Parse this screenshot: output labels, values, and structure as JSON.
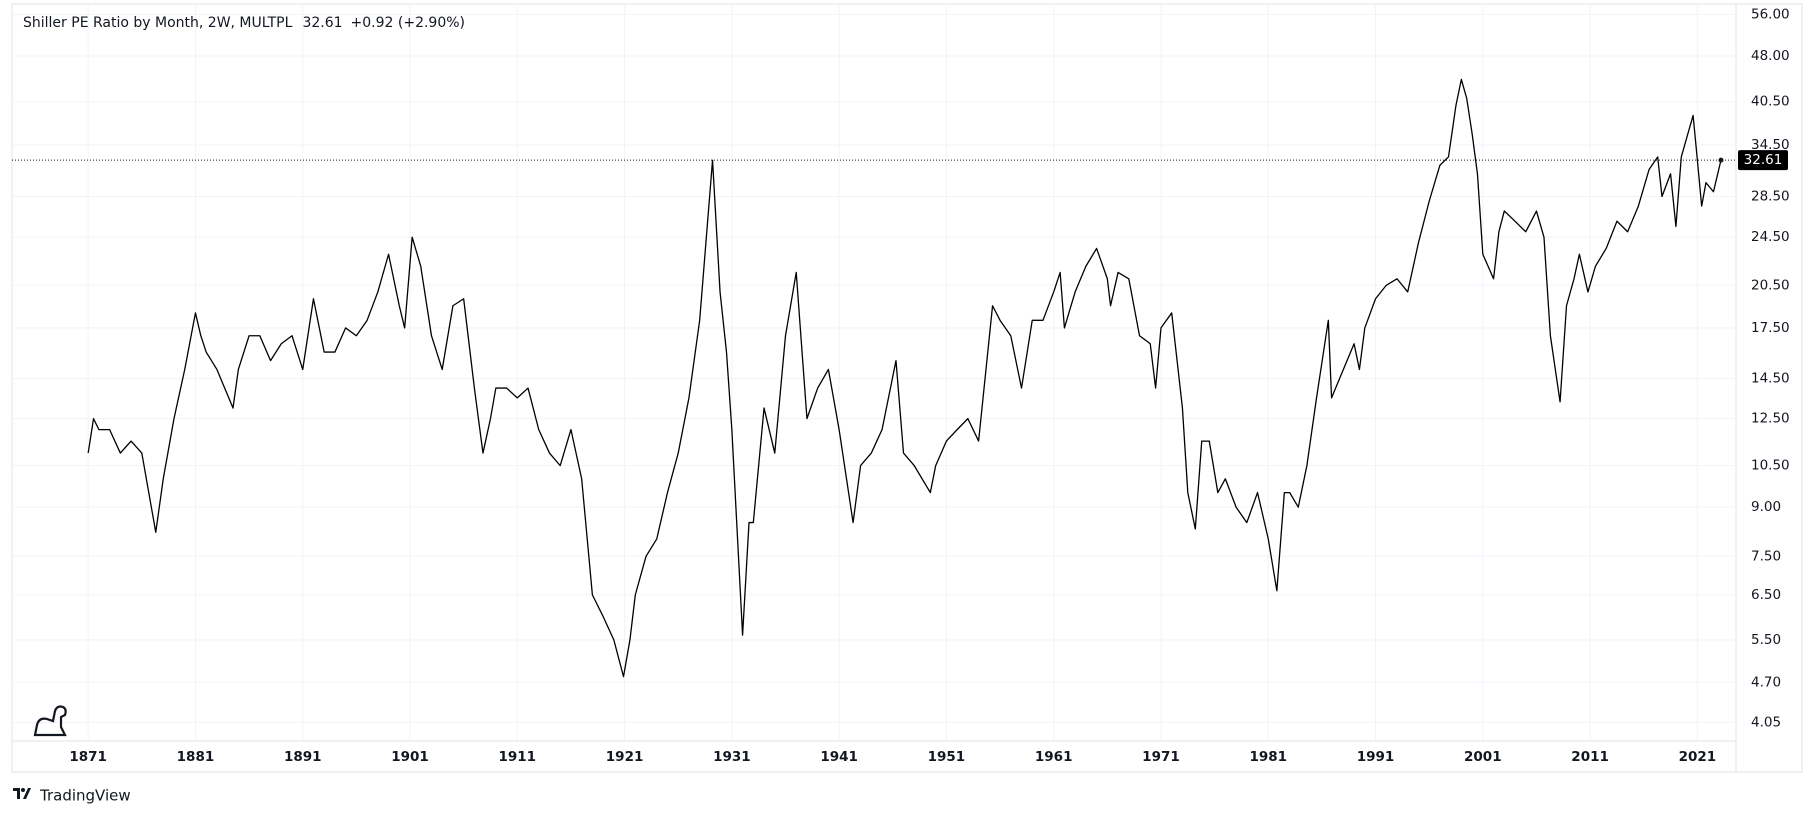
{
  "chart_data": {
    "type": "line",
    "title": "Shiller PE Ratio by Month, 2W, MULTPL",
    "legend_price": "32.61",
    "legend_change": "+0.92 (+2.90%)",
    "branding": "TradingView",
    "log_scale": true,
    "grid": true,
    "color": "#000000",
    "xlim": [
      1863.9,
      2024.6
    ],
    "xticks": [
      1871,
      1881,
      1891,
      1901,
      1911,
      1921,
      1931,
      1941,
      1951,
      1961,
      1971,
      1981,
      1991,
      2001,
      2011,
      2021
    ],
    "ylim": [
      3.78,
      58.2
    ],
    "yticks": [
      4.05,
      {
        "value": 4.7,
        "label": "4.70"
      },
      {
        "value": 5.5,
        "label": "5.50"
      },
      {
        "value": 6.5,
        "label": "6.50"
      },
      {
        "value": 7.5,
        "label": "7.50"
      },
      {
        "value": 9,
        "label": "9.00"
      },
      {
        "value": 10.5,
        "label": "10.50"
      },
      {
        "value": 12.5,
        "label": "12.50"
      },
      {
        "value": 14.5,
        "label": "14.50"
      },
      {
        "value": 17.5,
        "label": "17.50"
      },
      {
        "value": 20.5,
        "label": "20.50"
      },
      {
        "value": 24.5,
        "label": "24.50"
      },
      {
        "value": 28.5,
        "label": "28.50"
      },
      {
        "value": 34.5,
        "label": "34.50"
      },
      {
        "value": 40.5,
        "label": "40.50"
      },
      {
        "value": 48,
        "label": "48.00"
      },
      {
        "value": 56,
        "label": "56.00"
      }
    ],
    "x": [
      1871,
      1871.5,
      1872,
      1873,
      1874,
      1875,
      1876,
      1877.3,
      1878,
      1879,
      1880,
      1881,
      1881.5,
      1882,
      1883,
      1884.5,
      1885,
      1886,
      1887,
      1888,
      1889,
      1890,
      1891,
      1892,
      1893,
      1894,
      1895,
      1896,
      1897,
      1898,
      1899,
      1900,
      1900.5,
      1901.2,
      1902,
      1903,
      1904,
      1905,
      1906,
      1907,
      1907.8,
      1908.5,
      1909,
      1910,
      1911,
      1912,
      1913,
      1914,
      1915,
      1916,
      1917,
      1918,
      1919,
      1920,
      1920.9,
      1921.5,
      1922,
      1923,
      1924,
      1925,
      1926,
      1927,
      1928,
      1929.2,
      1929.9,
      1930.5,
      1931,
      1932,
      1932.6,
      1933,
      1934,
      1935,
      1936,
      1937,
      1938,
      1939,
      1940,
      1941,
      1942.3,
      1943,
      1944,
      1945,
      1946.3,
      1947,
      1948,
      1949.5,
      1950,
      1951,
      1952,
      1953,
      1954,
      1955.3,
      1956,
      1957,
      1958,
      1959,
      1960,
      1961,
      1961.6,
      1962,
      1963,
      1964,
      1965,
      1966,
      1966.3,
      1967,
      1968,
      1969,
      1970,
      1970.5,
      1971,
      1972,
      1973,
      1973.5,
      1974.2,
      1974.8,
      1975.5,
      1976.3,
      1977,
      1978,
      1979,
      1980,
      1981,
      1981.8,
      1982.5,
      1983,
      1983.8,
      1984.6,
      1985.5,
      1986.6,
      1986.9,
      1988,
      1989,
      1989.5,
      1990,
      1991,
      1992,
      1993,
      1994,
      1995,
      1996,
      1997,
      1997.8,
      1998.5,
      1999,
      1999.5,
      2000,
      2000.5,
      2001,
      2002,
      2002.5,
      2003,
      2004,
      2005,
      2006,
      2006.7,
      2007.3,
      2008.2,
      2008.8,
      2009.5,
      2010,
      2010.8,
      2011.5,
      2012.5,
      2013.5,
      2014.5,
      2015.5,
      2016.5,
      2017.3,
      2017.7,
      2018.5,
      2019,
      2019.5,
      2020.6,
      2020.9,
      2021.4,
      2021.8,
      2022.5,
      2023.2
    ],
    "values": [
      11,
      12.5,
      12,
      12,
      11,
      11.5,
      11,
      8.2,
      10,
      12.5,
      15,
      18.5,
      17,
      16,
      15,
      13,
      15,
      17,
      17,
      15.5,
      16.5,
      17,
      15,
      19.5,
      16,
      16,
      17.5,
      17,
      18,
      20,
      23,
      19,
      17.5,
      24.5,
      22,
      17,
      15,
      19,
      19.5,
      14,
      11,
      12.5,
      14,
      14,
      13.5,
      14,
      12,
      11,
      10.5,
      12,
      10,
      6.5,
      6,
      5.5,
      4.8,
      5.5,
      6.5,
      7.5,
      8,
      9.5,
      11,
      13.5,
      18,
      32.6,
      20,
      16,
      12,
      5.6,
      8.5,
      8.5,
      13,
      11,
      17,
      21.5,
      12.5,
      14,
      15,
      12,
      8.5,
      10.5,
      11,
      12,
      15.5,
      11,
      10.5,
      9.5,
      10.5,
      11.5,
      12,
      12.5,
      11.5,
      19,
      18,
      17,
      14,
      18,
      18,
      20,
      21.5,
      17.5,
      20,
      22,
      23.5,
      21,
      19,
      21.5,
      21,
      17,
      16.5,
      14,
      17.5,
      18.5,
      13,
      9.5,
      8.3,
      11.5,
      11.5,
      9.5,
      10,
      9,
      8.5,
      9.5,
      8,
      6.6,
      9.5,
      9.5,
      9,
      10.5,
      13.5,
      18,
      13.5,
      15,
      16.5,
      15,
      17.5,
      19.5,
      20.5,
      21,
      20,
      24,
      28,
      32,
      33,
      40,
      44,
      41,
      36,
      31,
      23,
      21,
      25,
      27,
      26,
      25,
      27,
      24.5,
      17,
      13.3,
      19,
      21,
      23,
      20,
      22,
      23.5,
      26,
      25,
      27.5,
      31.5,
      33,
      28.5,
      31,
      25.5,
      33,
      38.5,
      34,
      27.5,
      30,
      29,
      32.61
    ]
  }
}
